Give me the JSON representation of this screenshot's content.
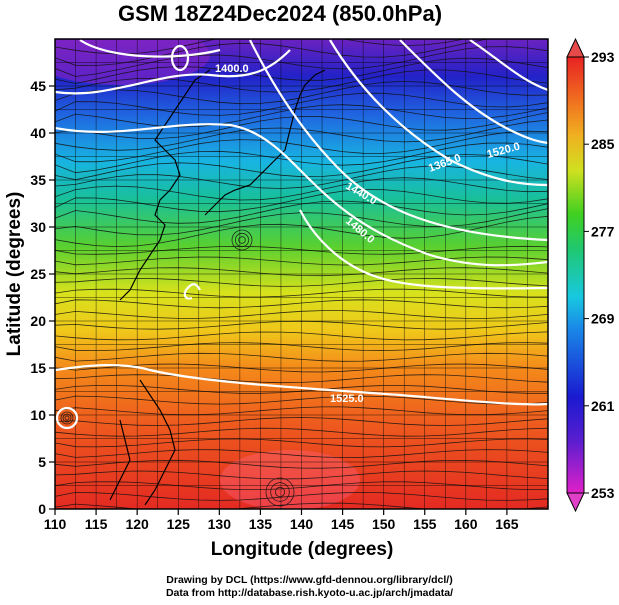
{
  "title": "GSM 18Z24Dec2024 (850.0hPa)",
  "chart_data": {
    "type": "heatmap",
    "title": "GSM 18Z24Dec2024 (850.0hPa)",
    "xlabel": "Longitude (degrees)",
    "ylabel": "Latitude  (degrees)",
    "xlim": [
      110,
      170
    ],
    "ylim": [
      0,
      50
    ],
    "x_ticks": [
      "110",
      "115",
      "120",
      "125",
      "130",
      "135",
      "140",
      "145",
      "150",
      "155",
      "160",
      "165"
    ],
    "y_ticks": [
      "0",
      "5",
      "10",
      "15",
      "20",
      "25",
      "30",
      "35",
      "40",
      "45"
    ],
    "colorbar": {
      "ticks": [
        "253",
        "261",
        "269",
        "277",
        "285",
        "293"
      ],
      "range": [
        253,
        293
      ],
      "colors": [
        "#d81ad8",
        "#2828d0",
        "#1ab4e6",
        "#20c848",
        "#f0e020",
        "#f07820",
        "#e82020"
      ]
    },
    "contour_labels": [
      "1400.0",
      "1365.0",
      "1440.0",
      "1480.0",
      "1520.0",
      "1525.0"
    ],
    "grid": true
  },
  "credits": {
    "line1": "Drawing by DCL (https://www.gfd-dennou.org/library/dcl/)",
    "line2": "Data from http://database.rish.kyoto-u.ac.jp/arch/jmadata/"
  }
}
